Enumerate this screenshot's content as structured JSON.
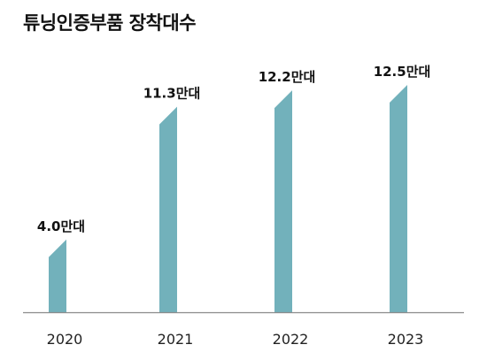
{
  "chart_data": {
    "type": "bar",
    "title": "튜닝인증부품 장착대수",
    "categories": [
      "2020",
      "2021",
      "2022",
      "2023"
    ],
    "values": [
      4.0,
      11.3,
      12.2,
      12.5
    ],
    "data_labels": [
      "4.0만대",
      "11.3만대",
      "12.2만대",
      "12.5만대"
    ],
    "unit": "만대",
    "ylim": [
      0,
      12.5
    ],
    "grid": false,
    "legend": "none",
    "colors": {
      "bar": "#72b1bb",
      "bar_top": "#5f9ea8",
      "baseline": "#8c8c8c",
      "label": "#111111",
      "tick": "#222222"
    }
  }
}
